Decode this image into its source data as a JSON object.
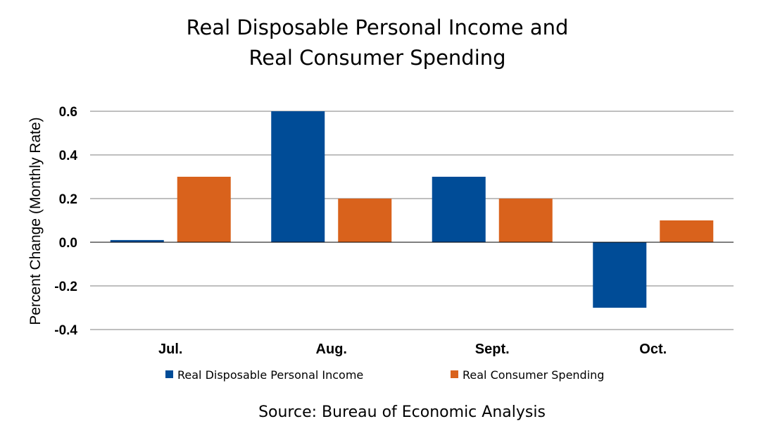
{
  "chart_data": {
    "type": "bar",
    "title": [
      "Real Disposable Personal Income and",
      "Real Consumer Spending"
    ],
    "ylabel": "Percent Change (Monthly Rate)",
    "xlabel": "",
    "categories": [
      "Jul.",
      "Aug.",
      "Sept.",
      "Oct."
    ],
    "series": [
      {
        "name": "Real Disposable Personal Income",
        "color": "#004C97",
        "values": [
          0.01,
          0.6,
          0.3,
          -0.3
        ]
      },
      {
        "name": "Real Consumer Spending",
        "color": "#D9621C",
        "values": [
          0.3,
          0.2,
          0.2,
          0.1
        ]
      }
    ],
    "ylim": [
      -0.4,
      0.6
    ],
    "yticks": [
      "-0.4",
      "-0.2",
      "0.0",
      "0.2",
      "0.4",
      "0.6"
    ],
    "ytick_values": [
      -0.4,
      -0.2,
      0.0,
      0.2,
      0.4,
      0.6
    ],
    "grid": true,
    "legend_position": "bottom",
    "source": "Source:  Bureau of Economic Analysis"
  }
}
